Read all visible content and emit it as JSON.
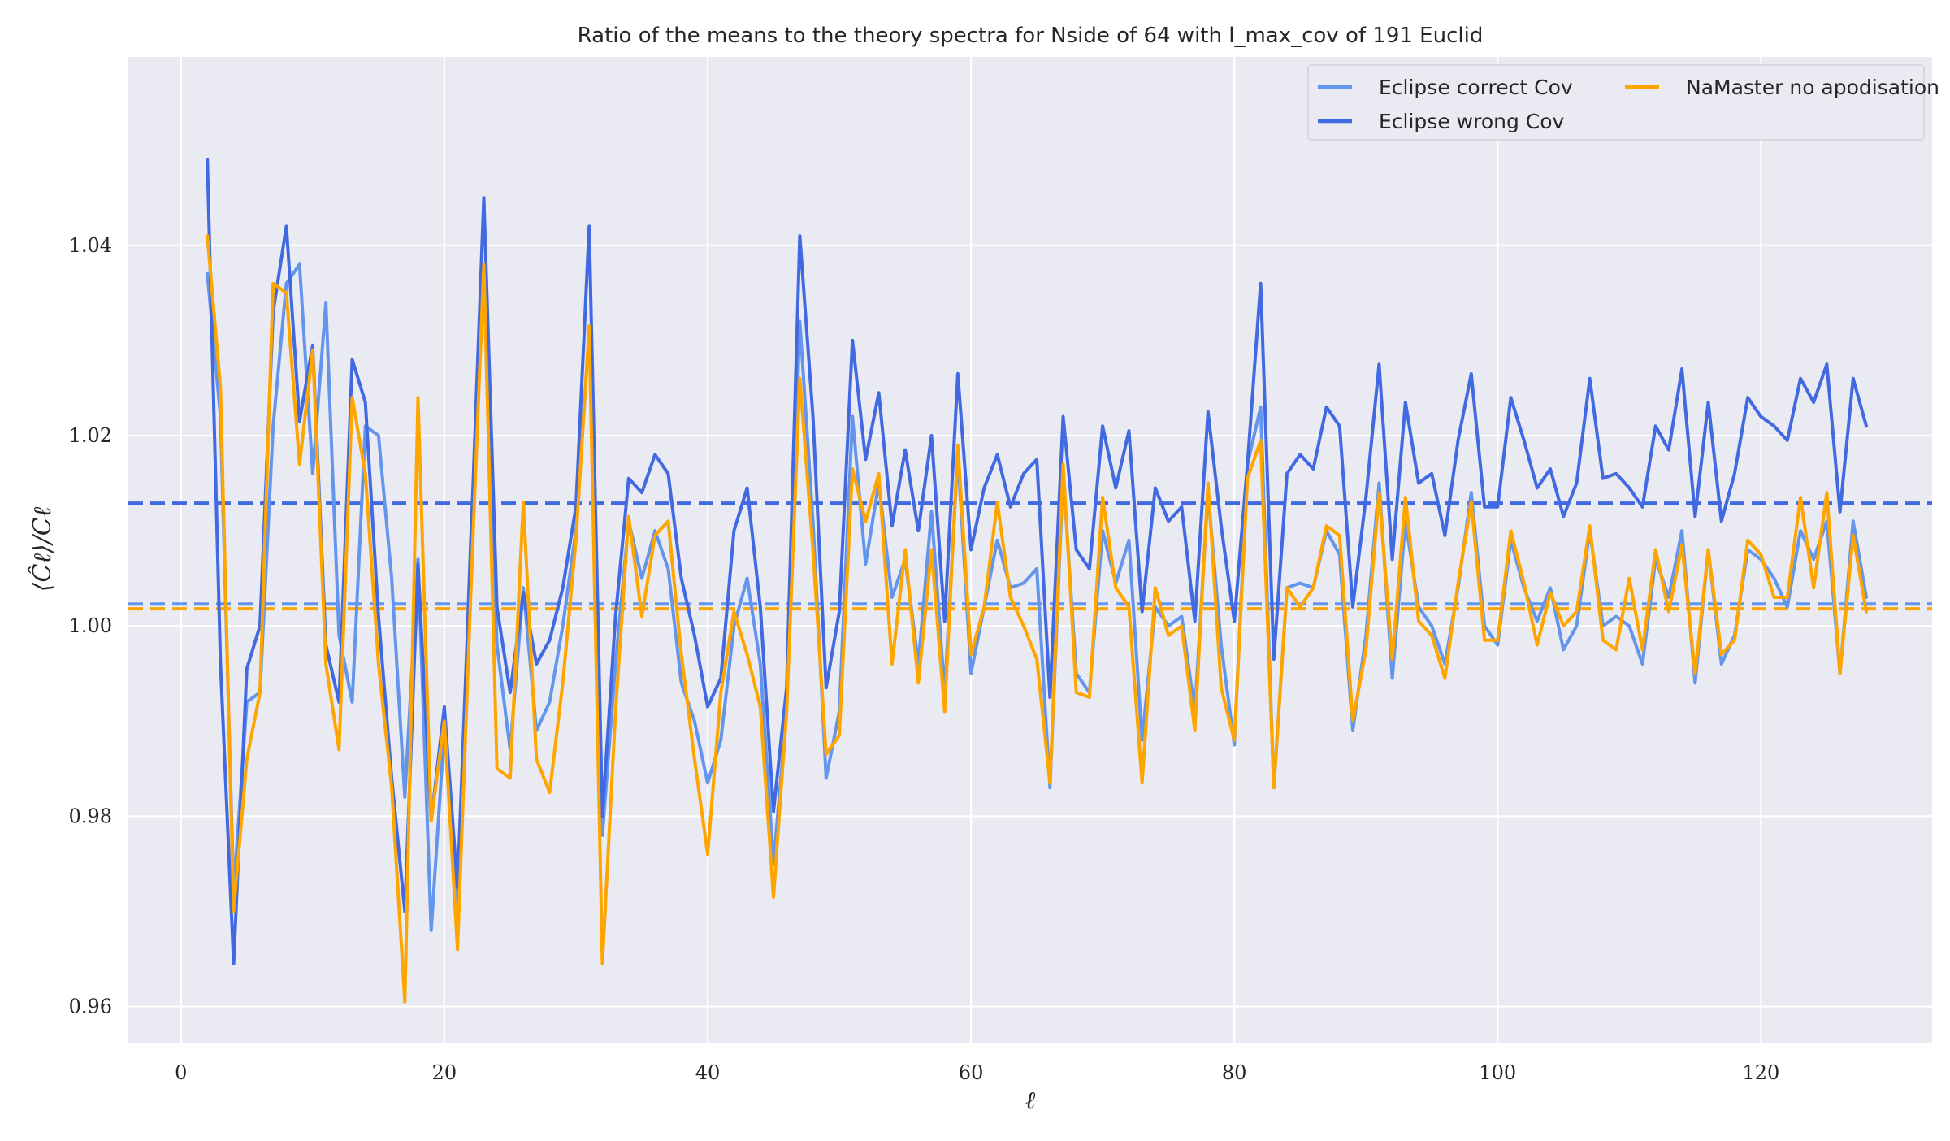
{
  "chart_data": {
    "type": "line",
    "title": "Ratio of the means to the theory spectra for Nside of 64 with l_max_cov of 191 Euclid",
    "xlabel": "ℓ",
    "ylabel": "⟨Ĉℓ⟩/Cℓ",
    "xlim": [
      -4,
      133
    ],
    "ylim": [
      0.9562,
      1.0598
    ],
    "xticks": [
      0,
      20,
      40,
      60,
      80,
      100,
      120
    ],
    "yticks": [
      0.96,
      0.98,
      1.0,
      1.02,
      1.04
    ],
    "ytick_labels": [
      "0.96",
      "0.98",
      "1.00",
      "1.02",
      "1.04"
    ],
    "grid": true,
    "legend_position": "top-right",
    "background": "#eaeaf2",
    "series": [
      {
        "name": "Eclipse correct Cov",
        "color": "#6495ed",
        "mean": 1.0023,
        "x_start": 2,
        "values": [
          1.037,
          1.022,
          0.972,
          0.992,
          0.993,
          1.021,
          1.036,
          1.038,
          1.016,
          1.034,
          0.999,
          0.992,
          1.021,
          1.02,
          1.005,
          0.982,
          1.007,
          0.968,
          0.989,
          0.97,
          1.009,
          1.036,
          0.998,
          0.987,
          1.004,
          0.989,
          0.992,
          1.0,
          1.01,
          1.031,
          0.978,
          0.996,
          1.011,
          1.005,
          1.01,
          1.006,
          0.994,
          0.99,
          0.9835,
          0.988,
          1.0,
          1.005,
          0.996,
          0.975,
          0.991,
          1.032,
          1.011,
          0.984,
          0.991,
          1.022,
          1.0065,
          1.015,
          1.003,
          1.007,
          0.996,
          1.012,
          0.993,
          1.018,
          0.995,
          1.002,
          1.009,
          1.004,
          1.0045,
          1.006,
          0.983,
          1.016,
          0.995,
          0.993,
          1.01,
          1.0045,
          1.009,
          0.988,
          1.002,
          1.0,
          1.001,
          0.991,
          1.014,
          0.998,
          0.9875,
          1.017,
          1.023,
          0.983,
          1.004,
          1.0045,
          1.004,
          1.01,
          1.0075,
          0.989,
          0.999,
          1.015,
          0.9945,
          1.011,
          1.002,
          1.0,
          0.996,
          1.004,
          1.014,
          1.0,
          0.998,
          1.009,
          1.004,
          1.0005,
          1.004,
          0.9975,
          1.0,
          1.01,
          1.0,
          1.001,
          1.0,
          0.996,
          1.007,
          1.003,
          1.01,
          0.994,
          1.008,
          0.996,
          0.999,
          1.008,
          1.007,
          1.005,
          1.002,
          1.01,
          1.007,
          1.011,
          0.995,
          1.011,
          1.003
        ]
      },
      {
        "name": "Eclipse wrong Cov",
        "color": "#4169e1",
        "mean": 1.0129,
        "x_start": 2,
        "values": [
          1.049,
          0.996,
          0.9645,
          0.9955,
          1.0,
          1.033,
          1.042,
          1.0215,
          1.0295,
          0.998,
          0.992,
          1.028,
          1.0235,
          1.001,
          0.984,
          0.97,
          1.0065,
          0.9795,
          0.9915,
          0.9725,
          1.008,
          1.045,
          1.002,
          0.993,
          1.0035,
          0.996,
          0.9985,
          1.004,
          1.0125,
          1.042,
          0.98,
          1.001,
          1.0155,
          1.014,
          1.018,
          1.016,
          1.005,
          0.999,
          0.9915,
          0.9945,
          1.01,
          1.0145,
          1.002,
          0.9805,
          0.9935,
          1.041,
          1.022,
          0.9935,
          1.0015,
          1.03,
          1.0175,
          1.0245,
          1.0105,
          1.0185,
          1.01,
          1.02,
          1.0005,
          1.0265,
          1.008,
          1.0145,
          1.018,
          1.0125,
          1.016,
          1.0175,
          0.9925,
          1.022,
          1.008,
          1.006,
          1.021,
          1.0145,
          1.0205,
          1.0015,
          1.0145,
          1.011,
          1.0125,
          1.0005,
          1.0225,
          1.0105,
          1.0005,
          1.017,
          1.036,
          0.9965,
          1.016,
          1.018,
          1.0165,
          1.023,
          1.021,
          1.002,
          1.0135,
          1.0275,
          1.007,
          1.0235,
          1.015,
          1.016,
          1.0095,
          1.0195,
          1.0265,
          1.0125,
          1.0125,
          1.024,
          1.0195,
          1.0145,
          1.0165,
          1.0115,
          1.015,
          1.026,
          1.0155,
          1.016,
          1.0145,
          1.0125,
          1.021,
          1.0185,
          1.027,
          1.0115,
          1.0235,
          1.011,
          1.016,
          1.024,
          1.022,
          1.021,
          1.0195,
          1.026,
          1.0235,
          1.0275,
          1.012,
          1.026,
          1.021
        ]
      },
      {
        "name": "NaMaster no apodisation",
        "color": "#ffa500",
        "mean": 1.0018,
        "x_start": 2,
        "values": [
          1.041,
          1.025,
          0.97,
          0.986,
          0.993,
          1.036,
          1.035,
          1.017,
          1.029,
          0.996,
          0.987,
          1.024,
          1.016,
          0.996,
          0.983,
          0.9605,
          1.024,
          0.9795,
          0.99,
          0.966,
          1.003,
          1.038,
          0.985,
          0.984,
          1.013,
          0.986,
          0.9825,
          0.994,
          1.009,
          1.0315,
          0.9645,
          0.991,
          1.0115,
          1.001,
          1.0095,
          1.011,
          0.997,
          0.986,
          0.976,
          0.993,
          1.0015,
          0.997,
          0.9915,
          0.9715,
          0.991,
          1.026,
          1.008,
          0.9865,
          0.9885,
          1.0165,
          1.011,
          1.016,
          0.996,
          1.008,
          0.994,
          1.008,
          0.991,
          1.019,
          0.997,
          1.002,
          1.013,
          1.003,
          1.0,
          0.9965,
          0.9835,
          1.017,
          0.993,
          0.9925,
          1.0135,
          1.004,
          1.002,
          0.9835,
          1.004,
          0.999,
          1.0,
          0.989,
          1.015,
          0.9935,
          0.988,
          1.0155,
          1.0195,
          0.983,
          1.004,
          1.002,
          1.004,
          1.0105,
          1.0095,
          0.99,
          0.9975,
          1.014,
          0.9965,
          1.0135,
          1.0005,
          0.999,
          0.9945,
          1.0045,
          1.013,
          0.9985,
          0.9985,
          1.01,
          1.0045,
          0.998,
          1.0035,
          1.0,
          1.0015,
          1.0105,
          0.9985,
          0.9975,
          1.005,
          0.9975,
          1.008,
          1.0015,
          1.0085,
          0.995,
          1.008,
          0.997,
          0.9985,
          1.009,
          1.0075,
          1.003,
          1.003,
          1.0135,
          1.004,
          1.014,
          0.995,
          1.0095,
          1.0015
        ]
      }
    ]
  }
}
